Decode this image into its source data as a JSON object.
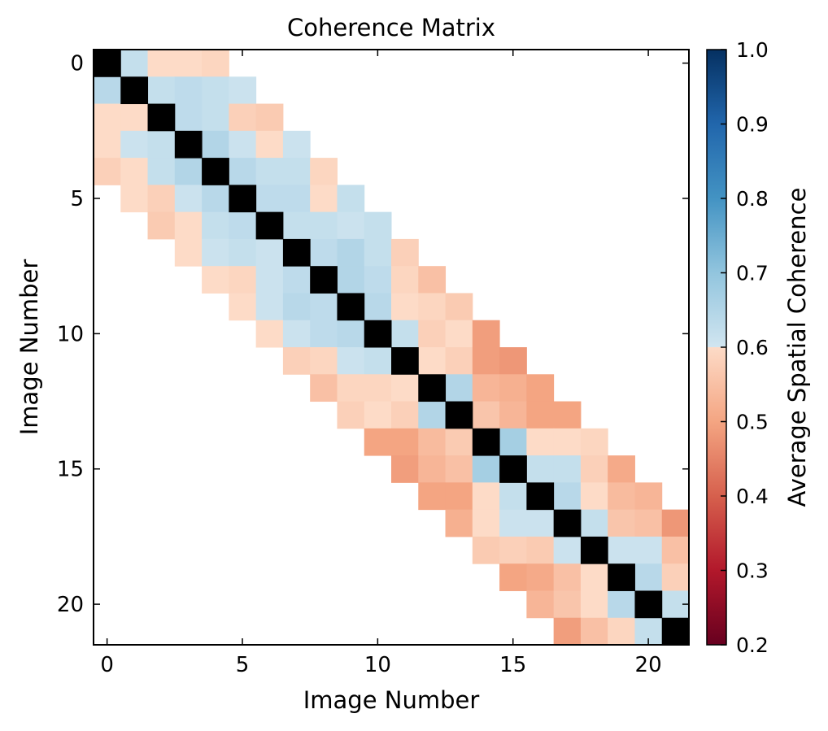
{
  "chart_data": {
    "type": "heatmap",
    "title": "Coherence Matrix",
    "xlabel": "Image Number",
    "ylabel": "Image Number",
    "n": 22,
    "x_ticks": [
      0,
      5,
      10,
      15,
      20
    ],
    "y_ticks": [
      0,
      5,
      10,
      15,
      20
    ],
    "colorbar": {
      "label": "Average Spatial Coherence",
      "min": 0.2,
      "max": 1.0,
      "ticks": [
        "0.2",
        "0.3",
        "0.4",
        "0.5",
        "0.6",
        "0.7",
        "0.8",
        "0.9",
        "1.0"
      ],
      "colormap": "RdBu"
    },
    "diagonal_color": "#000000",
    "cells": [
      [
        0,
        1,
        0.62
      ],
      [
        0,
        2,
        0.6
      ],
      [
        0,
        3,
        0.6
      ],
      [
        0,
        4,
        0.59
      ],
      [
        1,
        0,
        0.64
      ],
      [
        1,
        2,
        0.62
      ],
      [
        1,
        3,
        0.63
      ],
      [
        1,
        4,
        0.62
      ],
      [
        1,
        5,
        0.61
      ],
      [
        2,
        0,
        0.6
      ],
      [
        2,
        1,
        0.6
      ],
      [
        2,
        3,
        0.63
      ],
      [
        2,
        4,
        0.62
      ],
      [
        2,
        5,
        0.58
      ],
      [
        2,
        6,
        0.57
      ],
      [
        3,
        0,
        0.6
      ],
      [
        3,
        1,
        0.61
      ],
      [
        3,
        2,
        0.62
      ],
      [
        3,
        4,
        0.65
      ],
      [
        3,
        5,
        0.61
      ],
      [
        3,
        6,
        0.6
      ],
      [
        3,
        7,
        0.61
      ],
      [
        4,
        0,
        0.58
      ],
      [
        4,
        1,
        0.6
      ],
      [
        4,
        2,
        0.62
      ],
      [
        4,
        3,
        0.65
      ],
      [
        4,
        5,
        0.64
      ],
      [
        4,
        6,
        0.62
      ],
      [
        4,
        7,
        0.62
      ],
      [
        4,
        8,
        0.59
      ],
      [
        5,
        1,
        0.6
      ],
      [
        5,
        2,
        0.58
      ],
      [
        5,
        3,
        0.61
      ],
      [
        5,
        4,
        0.64
      ],
      [
        5,
        6,
        0.63
      ],
      [
        5,
        7,
        0.63
      ],
      [
        5,
        8,
        0.6
      ],
      [
        5,
        9,
        0.62
      ],
      [
        6,
        2,
        0.57
      ],
      [
        6,
        3,
        0.6
      ],
      [
        6,
        4,
        0.62
      ],
      [
        6,
        5,
        0.63
      ],
      [
        6,
        7,
        0.62
      ],
      [
        6,
        8,
        0.62
      ],
      [
        6,
        9,
        0.61
      ],
      [
        6,
        10,
        0.62
      ],
      [
        7,
        3,
        0.6
      ],
      [
        7,
        4,
        0.61
      ],
      [
        7,
        5,
        0.62
      ],
      [
        7,
        6,
        0.61
      ],
      [
        7,
        8,
        0.63
      ],
      [
        7,
        9,
        0.65
      ],
      [
        7,
        10,
        0.62
      ],
      [
        7,
        11,
        0.58
      ],
      [
        8,
        4,
        0.6
      ],
      [
        8,
        5,
        0.59
      ],
      [
        8,
        6,
        0.61
      ],
      [
        8,
        7,
        0.63
      ],
      [
        8,
        9,
        0.65
      ],
      [
        8,
        10,
        0.63
      ],
      [
        8,
        11,
        0.59
      ],
      [
        8,
        12,
        0.55
      ],
      [
        9,
        5,
        0.6
      ],
      [
        9,
        6,
        0.61
      ],
      [
        9,
        7,
        0.64
      ],
      [
        9,
        8,
        0.63
      ],
      [
        9,
        10,
        0.64
      ],
      [
        9,
        11,
        0.6
      ],
      [
        9,
        12,
        0.59
      ],
      [
        9,
        13,
        0.57
      ],
      [
        10,
        6,
        0.6
      ],
      [
        10,
        7,
        0.61
      ],
      [
        10,
        8,
        0.63
      ],
      [
        10,
        9,
        0.64
      ],
      [
        10,
        11,
        0.62
      ],
      [
        10,
        12,
        0.58
      ],
      [
        10,
        13,
        0.6
      ],
      [
        10,
        14,
        0.49
      ],
      [
        11,
        7,
        0.58
      ],
      [
        11,
        8,
        0.59
      ],
      [
        11,
        9,
        0.61
      ],
      [
        11,
        10,
        0.62
      ],
      [
        11,
        12,
        0.6
      ],
      [
        11,
        13,
        0.58
      ],
      [
        11,
        14,
        0.49
      ],
      [
        11,
        15,
        0.48
      ],
      [
        12,
        8,
        0.55
      ],
      [
        12,
        9,
        0.59
      ],
      [
        12,
        10,
        0.59
      ],
      [
        12,
        11,
        0.6
      ],
      [
        12,
        13,
        0.65
      ],
      [
        12,
        14,
        0.53
      ],
      [
        12,
        15,
        0.52
      ],
      [
        12,
        16,
        0.5
      ],
      [
        13,
        9,
        0.58
      ],
      [
        13,
        10,
        0.6
      ],
      [
        13,
        11,
        0.58
      ],
      [
        13,
        12,
        0.65
      ],
      [
        13,
        14,
        0.56
      ],
      [
        13,
        15,
        0.53
      ],
      [
        13,
        16,
        0.5
      ],
      [
        13,
        17,
        0.5
      ],
      [
        14,
        10,
        0.5
      ],
      [
        14,
        11,
        0.5
      ],
      [
        14,
        12,
        0.54
      ],
      [
        14,
        13,
        0.57
      ],
      [
        14,
        15,
        0.67
      ],
      [
        14,
        16,
        0.6
      ],
      [
        14,
        17,
        0.6
      ],
      [
        14,
        18,
        0.59
      ],
      [
        15,
        11,
        0.49
      ],
      [
        15,
        12,
        0.53
      ],
      [
        15,
        13,
        0.55
      ],
      [
        15,
        14,
        0.67
      ],
      [
        15,
        16,
        0.62
      ],
      [
        15,
        17,
        0.62
      ],
      [
        15,
        18,
        0.58
      ],
      [
        15,
        19,
        0.51
      ],
      [
        16,
        12,
        0.5
      ],
      [
        16,
        13,
        0.5
      ],
      [
        16,
        14,
        0.6
      ],
      [
        16,
        15,
        0.62
      ],
      [
        16,
        17,
        0.64
      ],
      [
        16,
        18,
        0.6
      ],
      [
        16,
        19,
        0.54
      ],
      [
        16,
        20,
        0.53
      ],
      [
        17,
        13,
        0.52
      ],
      [
        17,
        14,
        0.6
      ],
      [
        17,
        15,
        0.61
      ],
      [
        17,
        16,
        0.61
      ],
      [
        17,
        18,
        0.62
      ],
      [
        17,
        19,
        0.56
      ],
      [
        17,
        20,
        0.55
      ],
      [
        17,
        21,
        0.48
      ],
      [
        18,
        14,
        0.57
      ],
      [
        18,
        15,
        0.58
      ],
      [
        18,
        16,
        0.57
      ],
      [
        18,
        17,
        0.61
      ],
      [
        18,
        19,
        0.61
      ],
      [
        18,
        20,
        0.61
      ],
      [
        18,
        21,
        0.55
      ],
      [
        19,
        15,
        0.5
      ],
      [
        19,
        16,
        0.51
      ],
      [
        19,
        17,
        0.55
      ],
      [
        19,
        18,
        0.6
      ],
      [
        19,
        20,
        0.64
      ],
      [
        19,
        21,
        0.58
      ],
      [
        20,
        16,
        0.53
      ],
      [
        20,
        17,
        0.56
      ],
      [
        20,
        18,
        0.6
      ],
      [
        20,
        19,
        0.64
      ],
      [
        20,
        21,
        0.62
      ],
      [
        21,
        17,
        0.49
      ],
      [
        21,
        18,
        0.55
      ],
      [
        21,
        19,
        0.59
      ],
      [
        21,
        20,
        0.62
      ]
    ]
  }
}
